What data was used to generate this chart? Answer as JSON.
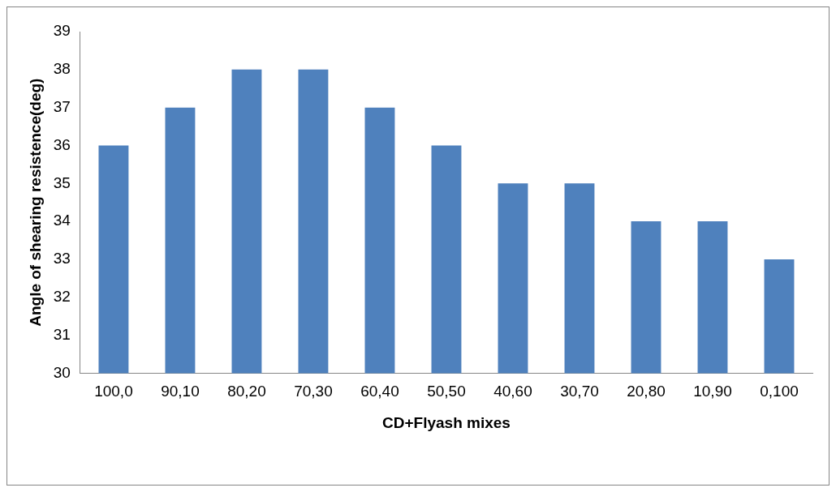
{
  "chart_data": {
    "type": "bar",
    "xlabel": "CD+Flyash mixes",
    "ylabel": "Angle of shearing resistence(deg)",
    "categories": [
      "100,0",
      "90,10",
      "80,20",
      "70,30",
      "60,40",
      "50,50",
      "40,60",
      "30,70",
      "20,80",
      "10,90",
      "0,100"
    ],
    "values": [
      36,
      37,
      38,
      38,
      37,
      36,
      35,
      35,
      34,
      34,
      33
    ],
    "color": "#4f81bd",
    "ylim": [
      30,
      39
    ],
    "yticks": [
      30,
      31,
      32,
      33,
      34,
      35,
      36,
      37,
      38,
      39
    ],
    "grid": false,
    "legend": false
  }
}
